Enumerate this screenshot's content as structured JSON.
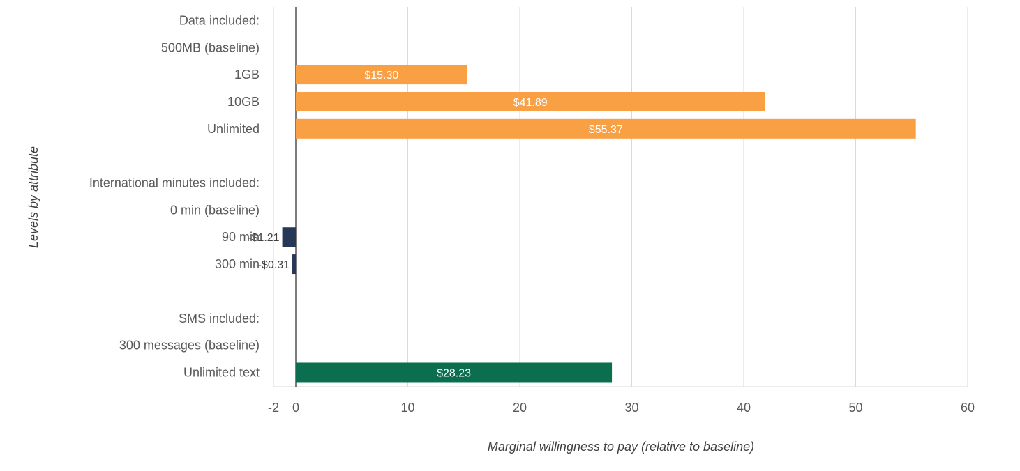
{
  "chart_data": {
    "type": "bar",
    "orientation": "horizontal",
    "xlabel": "Marginal willingness to pay (relative to baseline)",
    "ylabel": "Levels by attribute",
    "xlim": [
      -2,
      60
    ],
    "xticks": [
      -2,
      0,
      10,
      20,
      30,
      40,
      50,
      60
    ],
    "grid": true,
    "categories": [
      "Data included:",
      "500MB (baseline)",
      "1GB",
      "10GB",
      "Unlimited",
      "",
      "International minutes included:",
      "0 min (baseline)",
      "90 min",
      "300 min",
      "",
      "SMS included:",
      "300 messages (baseline)",
      "Unlimited text"
    ],
    "values": [
      null,
      null,
      15.3,
      41.89,
      55.37,
      null,
      null,
      null,
      -1.21,
      -0.31,
      null,
      null,
      null,
      28.23
    ],
    "labels": [
      "",
      "",
      "$15.30",
      "$41.89",
      "$55.37",
      "",
      "",
      "",
      "-$1.21",
      "-$0.31",
      "",
      "",
      "",
      "$28.23"
    ],
    "bar_colors": [
      "",
      "",
      "#F9A044",
      "#F9A044",
      "#F9A044",
      "",
      "",
      "",
      "#253858",
      "#253858",
      "",
      "",
      "",
      "#0B6E4F"
    ]
  }
}
